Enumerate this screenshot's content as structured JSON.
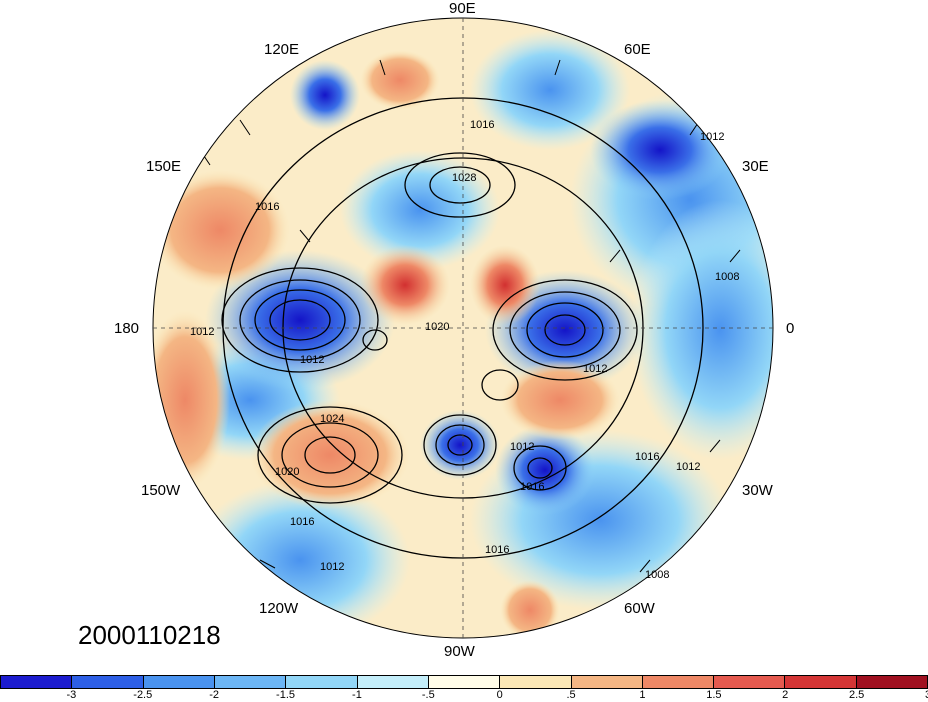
{
  "map": {
    "date_label": "2000110218",
    "longitude_labels": [
      "90E",
      "60E",
      "30E",
      "0",
      "30W",
      "60W",
      "90W",
      "120W",
      "150W",
      "180",
      "150E",
      "120E"
    ],
    "contour_labels": [
      "1016",
      "1016",
      "1028",
      "1012",
      "1008",
      "1012",
      "1020",
      "1012",
      "1024",
      "1020",
      "1016",
      "1012",
      "1016",
      "1012",
      "1016",
      "1008",
      "1012",
      "1012",
      "1016"
    ],
    "colors": {
      "strong_negative": "#1a1acc",
      "negative": "#3a8ff0",
      "weak_negative": "#a8e6f6",
      "neutral": "#fffbe6",
      "weak_positive": "#f6d7a0",
      "positive": "#ef8e63",
      "strong_positive": "#c8262a"
    }
  },
  "colorbar": {
    "colors": [
      "#1c1ccf",
      "#2d5fe6",
      "#4a93ef",
      "#6cb6f5",
      "#92d6f7",
      "#c4eefa",
      "#fffce8",
      "#fbe7b6",
      "#f4b684",
      "#ee8866",
      "#e55a4f",
      "#d43535",
      "#a01020"
    ],
    "ticks": [
      "-3",
      "-2.5",
      "-2",
      "-1.5",
      "-1",
      "-.5",
      "0",
      ".5",
      "1",
      "1.5",
      "2",
      "2.5",
      "3"
    ]
  }
}
